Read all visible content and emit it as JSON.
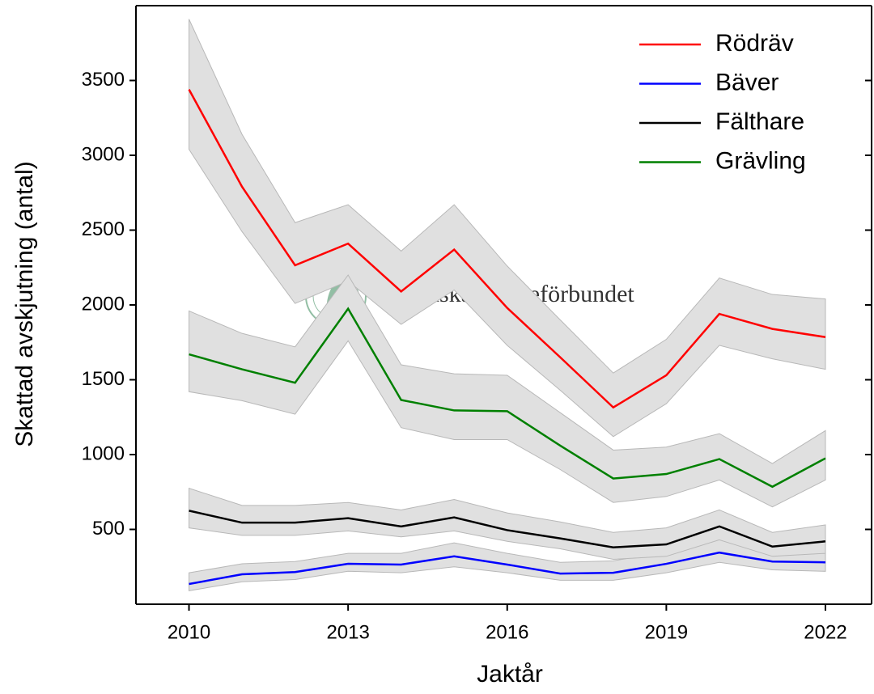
{
  "chart_data": {
    "type": "line",
    "xlabel": "Jaktår",
    "ylabel": "Skattad avskjutning (antal)",
    "watermark": "Svenska Jägareförbundet",
    "x": [
      2010,
      2011,
      2012,
      2013,
      2014,
      2015,
      2016,
      2017,
      2018,
      2019,
      2020,
      2021,
      2022
    ],
    "xlim": [
      2009,
      2022.87
    ],
    "xticks": [
      2010,
      2013,
      2016,
      2019,
      2022
    ],
    "ylim": [
      0,
      4000
    ],
    "yticks": [
      500,
      1000,
      1500,
      2000,
      2500,
      3000,
      3500
    ],
    "band_color": "#e0e0e0",
    "legend": "upper right",
    "series": [
      {
        "name": "Rödräv",
        "color": "#ff0000",
        "values": [
          3440,
          2790,
          2265,
          2410,
          2090,
          2370,
          1980,
          1650,
          1315,
          1530,
          1940,
          1840,
          1785
        ],
        "lower": [
          3040,
          2490,
          2010,
          2160,
          1870,
          2100,
          1730,
          1430,
          1120,
          1340,
          1730,
          1640,
          1570
        ],
        "upper": [
          3910,
          3140,
          2550,
          2670,
          2360,
          2670,
          2260,
          1900,
          1545,
          1770,
          2180,
          2070,
          2040
        ]
      },
      {
        "name": "Bäver",
        "color": "#0000ff",
        "values": [
          135,
          200,
          215,
          270,
          265,
          320,
          265,
          205,
          210,
          270,
          345,
          285,
          280
        ],
        "lower": [
          90,
          150,
          165,
          220,
          210,
          250,
          210,
          160,
          160,
          210,
          280,
          230,
          220
        ],
        "upper": [
          210,
          270,
          285,
          340,
          340,
          410,
          340,
          280,
          290,
          350,
          440,
          370,
          350
        ]
      },
      {
        "name": "Fälthare",
        "color": "#000000",
        "values": [
          625,
          545,
          545,
          575,
          520,
          580,
          495,
          440,
          380,
          400,
          520,
          385,
          420
        ],
        "lower": [
          510,
          460,
          460,
          490,
          450,
          490,
          420,
          370,
          300,
          320,
          430,
          320,
          340
        ],
        "upper": [
          775,
          660,
          660,
          680,
          630,
          700,
          610,
          550,
          480,
          510,
          630,
          480,
          530
        ]
      },
      {
        "name": "Grävling",
        "color": "#008000",
        "values": [
          1670,
          1570,
          1480,
          1975,
          1365,
          1295,
          1290,
          1060,
          840,
          870,
          970,
          785,
          975
        ],
        "lower": [
          1420,
          1360,
          1270,
          1760,
          1180,
          1100,
          1100,
          900,
          680,
          720,
          830,
          650,
          830
        ],
        "upper": [
          1960,
          1810,
          1720,
          2200,
          1600,
          1540,
          1530,
          1280,
          1030,
          1050,
          1140,
          940,
          1160
        ]
      }
    ]
  }
}
